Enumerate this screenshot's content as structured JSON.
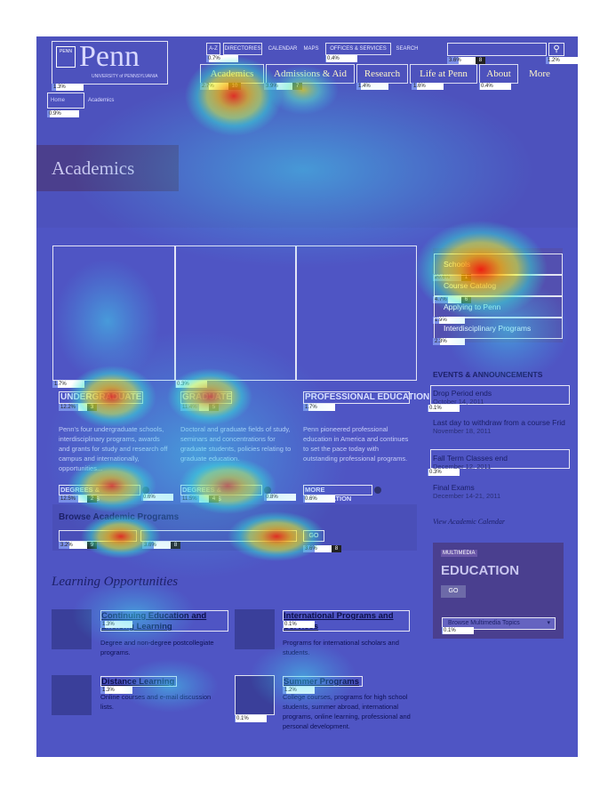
{
  "header": {
    "logo_shield": "PENN",
    "logo_text": "Penn",
    "logo_sub": "UNIVERSITY of PENNSYLVANIA",
    "top_links": [
      "A-Z",
      "DIRECTORIES",
      "CALENDAR",
      "MAPS",
      "OFFICES & SERVICES",
      "SEARCH"
    ],
    "search_placeholder": "",
    "nav": [
      "Academics",
      "Admissions & Aid",
      "Research",
      "Life at Penn",
      "About",
      "More"
    ],
    "breadcrumb": [
      "Home",
      "Academics"
    ]
  },
  "hero": {
    "title": "Academics"
  },
  "sidebar": {
    "links": [
      "Schools",
      "Course Catalog",
      "Applying to Penn",
      "Interdisciplinary Programs"
    ],
    "events_heading": "EVENTS & ANNOUNCEMENTS",
    "events": [
      {
        "title": "Drop Period ends",
        "date": "October 14, 2011"
      },
      {
        "title": "Last day to withdraw from a course Frid",
        "date": "November 18, 2011"
      },
      {
        "title": "Fall Term Classes end",
        "date": "December 12, 2011"
      },
      {
        "title": "Final Exams",
        "date": "December 14-21, 2011"
      }
    ],
    "view_calendar": "View Academic Calendar",
    "multimedia_label": "MULTIMEDIA",
    "multimedia_title": "EDUCATION",
    "go_label": "GO",
    "topics_select": "Browse Multimedia Topics"
  },
  "columns": [
    {
      "heading": "UNDERGRADUATE",
      "text": "Penn's four undergraduate schools, interdisciplinary programs, awards and grants for study and research off campus and internationally, opportunities...",
      "link": "DEGREES & PROGRAMS"
    },
    {
      "heading": "GRADUATE",
      "text": "Doctoral and graduate fields of study, seminars and concentrations for graduate students, policies relating to graduate education.",
      "link": "DEGREES & PROGRAMS"
    },
    {
      "heading": "PROFESSIONAL EDUCATION",
      "text": "Penn pioneered professional education in America and continues to set the pace today with outstanding professional programs.",
      "link": "MORE INFORMATION"
    }
  ],
  "browse": {
    "heading": "Browse Academic Programs",
    "go_label": "GO"
  },
  "learning": {
    "heading": "Learning Opportunities",
    "items": [
      {
        "title": "Continuing Education and Lifelong Learning",
        "desc": "Degree and non-degree postcollegiate programs."
      },
      {
        "title": "International Programs and Services",
        "desc": "Programs for international scholars and students."
      },
      {
        "title": "Distance Learning",
        "desc": "Online courses and e-mail discussion lists."
      },
      {
        "title": "Summer Programs",
        "desc": "College courses, programs for high school students, summer abroad, international programs, online learning, professional and personal development."
      }
    ]
  },
  "click_stats": {
    "logo": "1.3%",
    "az": "0.7%",
    "directories": "0.4%",
    "offices": "0.4%",
    "search_input": "3.6%",
    "search_btn": "1.2%",
    "nav_academics": "2.7%",
    "nav_academics_rank": "10",
    "nav_admissions": "3.9%",
    "nav_admissions_rank": "7",
    "nav_research": "1.4%",
    "nav_life": "1.6%",
    "nav_about": "0.4%",
    "breadcrumb_home": "0.9%",
    "sb_schools": "20.6%",
    "sb_schools_rank": "1",
    "sb_catalog": "4.7%",
    "sb_catalog_rank": "6",
    "sb_applying": "1.9%",
    "sb_interdisc": "2.3%",
    "photo_ug": "1.7%",
    "photo_grad": "0.3%",
    "h_ug": "12.2%",
    "h_ug_rank": "3",
    "h_grad": "11.4%",
    "h_grad_rank": "5",
    "h_prof": "1.7%",
    "l_ug": "12.5%",
    "l_ug_rank": "2",
    "l_ug2": "0.6%",
    "l_grad": "11.5%",
    "l_grad_rank": "4",
    "l_grad2": "0.8%",
    "l_prof": "0.6%",
    "br1": "3.2%",
    "br1_rank": "9",
    "br2": "3.6%",
    "br2_rank": "8",
    "br_go": "3.6%",
    "br_go_rank": "8",
    "ev_drop": "0.1%",
    "ev_fall": "0.3%",
    "mm_select": "0.1%",
    "le_cont": "1.3%",
    "le_intl": "0.1%",
    "le_dist": "1.3%",
    "le_summer": "1.2%",
    "le_summer_img": "0.1%"
  },
  "colors": {
    "overlay": "#4f55c4",
    "nav_text": "#fff6c8"
  }
}
